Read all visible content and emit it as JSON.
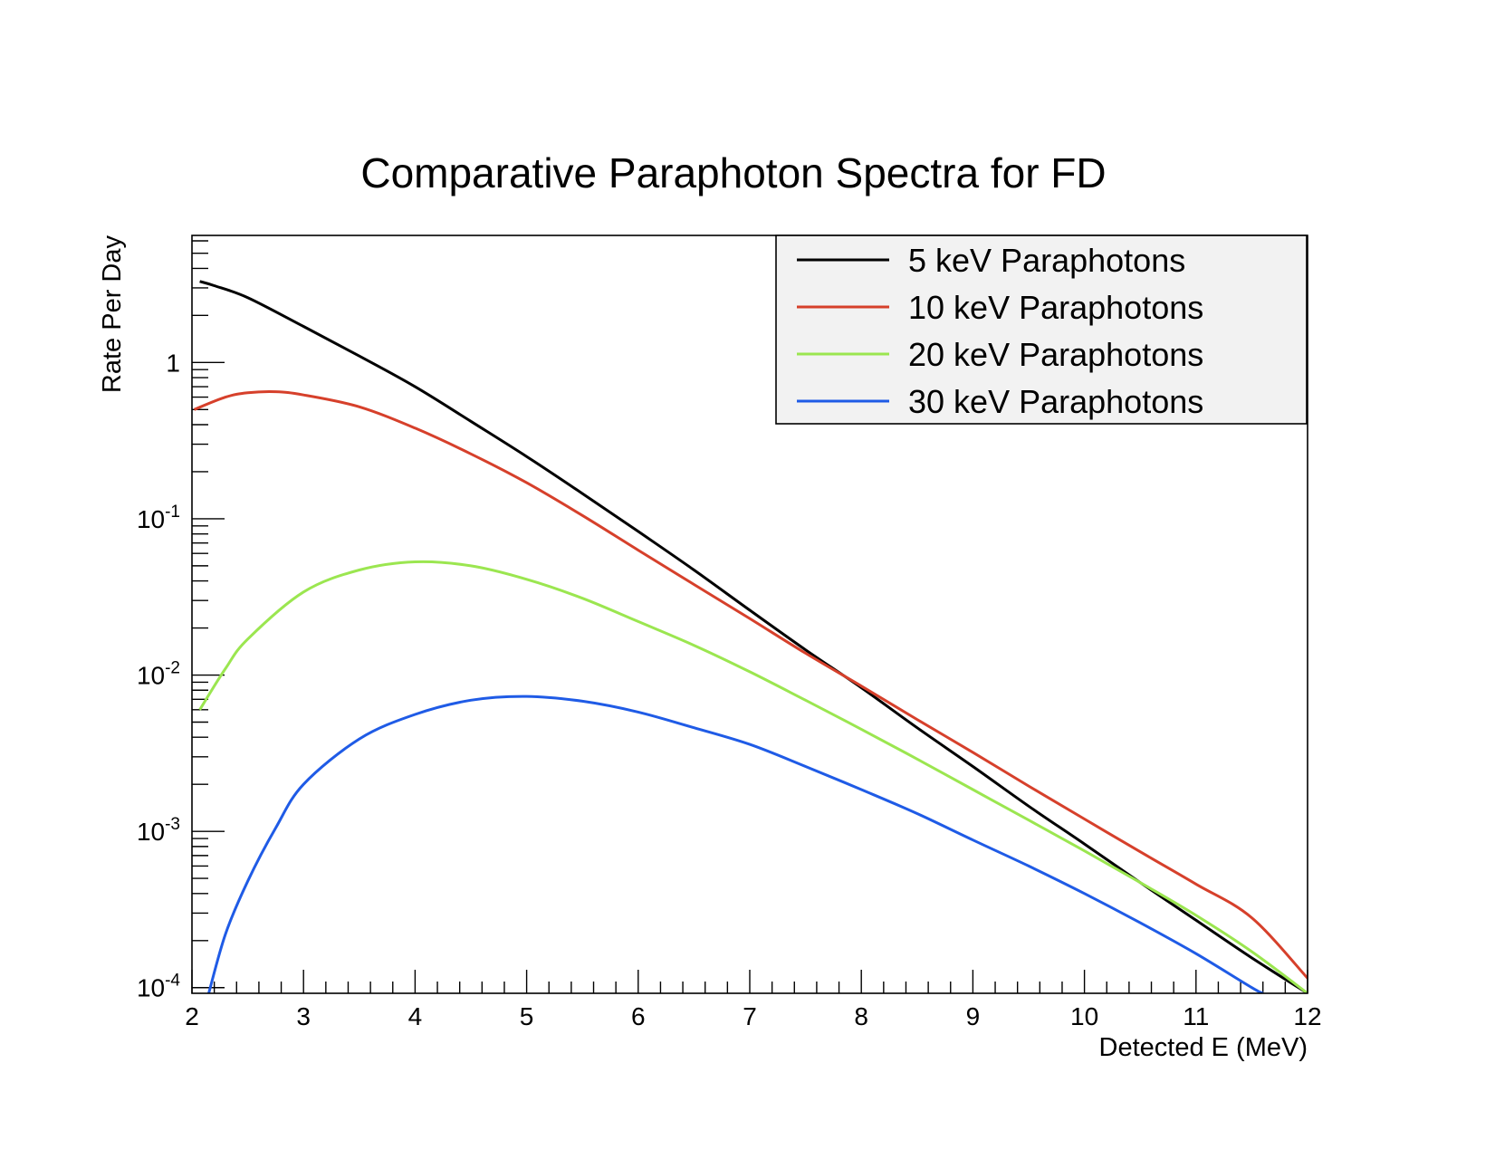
{
  "chart_data": {
    "type": "line",
    "title": "Comparative Paraphoton Spectra for FD",
    "xlabel": "Detected E (MeV)",
    "ylabel": "Rate Per Day",
    "xlim": [
      2,
      12
    ],
    "ylim": [
      9.2e-05,
      6.5
    ],
    "y_scale": "log",
    "x_ticks": [
      2,
      3,
      4,
      5,
      6,
      7,
      8,
      9,
      10,
      11,
      12
    ],
    "x_tick_labels": [
      "2",
      "3",
      "4",
      "5",
      "6",
      "7",
      "8",
      "9",
      "10",
      "11",
      "12"
    ],
    "y_ticks": [
      {
        "value": 1,
        "base": "1",
        "exponent": ""
      },
      {
        "value": 0.1,
        "base": "10",
        "exponent": "-1"
      },
      {
        "value": 0.01,
        "base": "10",
        "exponent": "-2"
      },
      {
        "value": 0.001,
        "base": "10",
        "exponent": "-3"
      },
      {
        "value": 0.0001,
        "base": "10",
        "exponent": "-4"
      }
    ],
    "grid": false,
    "legend_position": "top-right",
    "series": [
      {
        "name": "5 keV Paraphotons",
        "color": "#000000",
        "x": [
          2.07,
          2.2,
          2.5,
          3.0,
          3.5,
          4.0,
          4.5,
          5.0,
          5.5,
          6.0,
          6.5,
          7.0,
          7.5,
          8.0,
          8.5,
          9.0,
          9.5,
          10.0,
          10.5,
          11.0,
          11.5,
          12.0
        ],
        "y": [
          3.3,
          3.1,
          2.6,
          1.7,
          1.1,
          0.7,
          0.42,
          0.25,
          0.145,
          0.083,
          0.047,
          0.026,
          0.0145,
          0.0083,
          0.0046,
          0.0026,
          0.00145,
          0.00083,
          0.00047,
          0.00027,
          0.000155,
          9.2e-05
        ]
      },
      {
        "name": "10 keV Paraphotons",
        "color": "#d6402b",
        "x": [
          2.02,
          2.3,
          2.5,
          2.75,
          3.0,
          3.5,
          4.0,
          4.5,
          5.0,
          5.5,
          6.0,
          6.5,
          7.0,
          7.5,
          8.0,
          8.5,
          9.0,
          9.5,
          10.0,
          10.5,
          11.0,
          11.5,
          12.0
        ],
        "y": [
          0.5,
          0.6,
          0.64,
          0.65,
          0.62,
          0.52,
          0.38,
          0.26,
          0.17,
          0.105,
          0.063,
          0.038,
          0.023,
          0.0138,
          0.0085,
          0.0052,
          0.0032,
          0.00195,
          0.0012,
          0.00074,
          0.00046,
          0.00028,
          0.000115
        ]
      },
      {
        "name": "20 keV Paraphotons",
        "color": "#9be650",
        "x": [
          2.07,
          2.3,
          2.5,
          3.0,
          3.5,
          4.0,
          4.5,
          5.0,
          5.5,
          6.0,
          6.5,
          7.0,
          7.5,
          8.0,
          8.5,
          9.0,
          9.5,
          10.0,
          10.5,
          11.0,
          11.5,
          12.0
        ],
        "y": [
          0.006,
          0.011,
          0.017,
          0.034,
          0.047,
          0.053,
          0.05,
          0.041,
          0.031,
          0.022,
          0.0155,
          0.0105,
          0.0069,
          0.0045,
          0.0029,
          0.00185,
          0.00118,
          0.00075,
          0.00047,
          0.00029,
          0.00017,
          9.2e-05
        ]
      },
      {
        "name": "30 keV Paraphotons",
        "color": "#1f5be6",
        "x": [
          2.15,
          2.3,
          2.5,
          2.75,
          3.0,
          3.5,
          4.0,
          4.5,
          5.0,
          5.5,
          6.0,
          6.5,
          7.0,
          7.5,
          8.0,
          8.5,
          9.0,
          9.5,
          10.0,
          10.5,
          11.0,
          11.5,
          11.6
        ],
        "y": [
          9.2e-05,
          0.00022,
          0.00048,
          0.00105,
          0.002,
          0.0039,
          0.0056,
          0.0069,
          0.0073,
          0.0068,
          0.0058,
          0.0046,
          0.0036,
          0.0026,
          0.00185,
          0.0013,
          0.00088,
          0.0006,
          0.0004,
          0.00026,
          0.000165,
          0.0001,
          9.2e-05
        ]
      }
    ]
  }
}
